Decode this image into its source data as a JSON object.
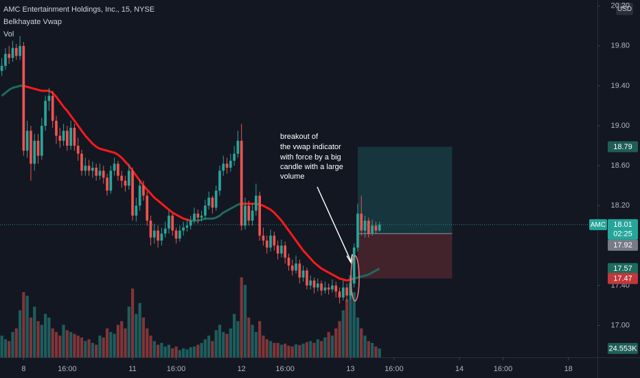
{
  "chart_data": {
    "type": "candlestick",
    "title": "AMC Entertainment Holdings, Inc., 15, NYSE",
    "indicators": [
      "Belkhayate Vwap",
      "Vol"
    ],
    "currency": "USD",
    "symbol": "AMC",
    "countdown": "02:25",
    "up_color": "#26a69a",
    "down_color": "#ef5350",
    "vwap_up_color": "#1d6b5f",
    "vwap_down_color": "#ff1a1a",
    "grid": false,
    "xlim": [
      -0.5,
      164
    ],
    "xticks": [
      {
        "value": 6,
        "label": "8"
      },
      {
        "value": 18,
        "label": "16:00"
      },
      {
        "value": 36,
        "label": "11"
      },
      {
        "value": 48,
        "label": "16:00"
      },
      {
        "value": 66,
        "label": "12"
      },
      {
        "value": 78,
        "label": "16:00"
      },
      {
        "value": 96,
        "label": "13"
      },
      {
        "value": 108,
        "label": "16:00"
      },
      {
        "value": 126,
        "label": "14"
      },
      {
        "value": 138,
        "label": "16:00"
      },
      {
        "value": 156,
        "label": "18"
      }
    ],
    "ylim": [
      16.68,
      20.26
    ],
    "yticks": [
      {
        "value": 17.0,
        "label": "17.00"
      },
      {
        "value": 17.4,
        "label": "17.40"
      },
      {
        "value": 18.2,
        "label": "18.20"
      },
      {
        "value": 18.6,
        "label": "18.60"
      },
      {
        "value": 19.0,
        "label": "19.00"
      },
      {
        "value": 19.4,
        "label": "19.40"
      },
      {
        "value": 19.8,
        "label": "19.80"
      },
      {
        "value": 20.2,
        "label": "20.20"
      }
    ],
    "ohlc": [
      [
        19.55,
        19.68,
        19.5,
        19.6
      ],
      [
        19.6,
        19.78,
        19.56,
        19.72
      ],
      [
        19.72,
        19.8,
        19.62,
        19.68
      ],
      [
        19.68,
        19.85,
        19.64,
        19.78
      ],
      [
        19.78,
        19.82,
        19.66,
        19.7
      ],
      [
        19.7,
        19.9,
        19.66,
        19.8
      ],
      [
        19.8,
        19.84,
        18.7,
        18.75
      ],
      [
        18.75,
        19.05,
        18.68,
        18.95
      ],
      [
        18.95,
        19.0,
        18.45,
        18.62
      ],
      [
        18.62,
        18.92,
        18.55,
        18.85
      ],
      [
        18.85,
        18.92,
        18.62,
        18.7
      ],
      [
        18.7,
        19.08,
        18.66,
        19.0
      ],
      [
        19.0,
        19.3,
        18.95,
        19.25
      ],
      [
        19.25,
        19.38,
        19.15,
        19.3
      ],
      [
        19.3,
        19.35,
        18.98,
        19.05
      ],
      [
        19.05,
        19.1,
        18.82,
        18.9
      ],
      [
        18.9,
        18.98,
        18.78,
        18.85
      ],
      [
        18.85,
        19.02,
        18.8,
        18.95
      ],
      [
        18.95,
        19.0,
        18.75,
        18.8
      ],
      [
        18.8,
        19.05,
        18.76,
        18.98
      ],
      [
        18.98,
        19.02,
        18.75,
        18.8
      ],
      [
        18.8,
        18.88,
        18.65,
        18.72
      ],
      [
        18.72,
        18.76,
        18.5,
        18.55
      ],
      [
        18.55,
        18.68,
        18.5,
        18.6
      ],
      [
        18.6,
        18.66,
        18.5,
        18.55
      ],
      [
        18.55,
        18.64,
        18.48,
        18.58
      ],
      [
        18.58,
        18.62,
        18.45,
        18.5
      ],
      [
        18.5,
        18.62,
        18.46,
        18.55
      ],
      [
        18.55,
        18.6,
        18.42,
        18.48
      ],
      [
        18.48,
        18.52,
        18.3,
        18.35
      ],
      [
        18.35,
        18.6,
        18.32,
        18.55
      ],
      [
        18.55,
        18.68,
        18.5,
        18.62
      ],
      [
        18.62,
        18.65,
        18.45,
        18.5
      ],
      [
        18.5,
        18.55,
        18.38,
        18.45
      ],
      [
        18.45,
        18.5,
        18.34,
        18.4
      ],
      [
        18.4,
        18.62,
        18.36,
        18.55
      ],
      [
        18.55,
        18.58,
        18.05,
        18.1
      ],
      [
        18.1,
        18.28,
        18.04,
        18.2
      ],
      [
        18.2,
        18.46,
        18.15,
        18.4
      ],
      [
        18.4,
        18.45,
        18.25,
        18.3
      ],
      [
        18.3,
        18.34,
        18.0,
        18.05
      ],
      [
        18.05,
        18.1,
        17.8,
        17.88
      ],
      [
        17.88,
        18.02,
        17.82,
        17.95
      ],
      [
        17.95,
        18.0,
        17.78,
        17.85
      ],
      [
        17.85,
        17.98,
        17.8,
        17.92
      ],
      [
        17.92,
        18.04,
        17.88,
        17.97
      ],
      [
        17.97,
        18.15,
        17.92,
        18.1
      ],
      [
        18.1,
        18.12,
        17.9,
        17.95
      ],
      [
        17.95,
        17.98,
        17.82,
        17.87
      ],
      [
        17.87,
        18.0,
        17.84,
        17.95
      ],
      [
        17.95,
        18.04,
        17.9,
        17.98
      ],
      [
        17.98,
        18.06,
        17.94,
        18.0
      ],
      [
        18.0,
        18.1,
        17.96,
        18.05
      ],
      [
        18.05,
        18.18,
        18.02,
        18.12
      ],
      [
        18.12,
        18.16,
        18.02,
        18.08
      ],
      [
        18.08,
        18.15,
        18.04,
        18.1
      ],
      [
        18.1,
        18.26,
        18.06,
        18.2
      ],
      [
        18.2,
        18.34,
        18.16,
        18.28
      ],
      [
        18.28,
        18.3,
        18.12,
        18.18
      ],
      [
        18.18,
        18.4,
        18.15,
        18.35
      ],
      [
        18.35,
        18.6,
        18.3,
        18.55
      ],
      [
        18.55,
        18.7,
        18.5,
        18.62
      ],
      [
        18.62,
        18.68,
        18.52,
        18.58
      ],
      [
        18.58,
        18.72,
        18.54,
        18.65
      ],
      [
        18.65,
        18.8,
        18.6,
        18.72
      ],
      [
        18.72,
        18.95,
        18.68,
        18.85
      ],
      [
        18.85,
        19.02,
        17.95,
        18.0
      ],
      [
        18.0,
        18.28,
        17.96,
        18.2
      ],
      [
        18.2,
        18.25,
        18.0,
        18.05
      ],
      [
        18.05,
        18.22,
        18.0,
        18.15
      ],
      [
        18.15,
        18.42,
        18.1,
        18.3
      ],
      [
        18.3,
        18.34,
        17.85,
        17.9
      ],
      [
        17.9,
        17.98,
        17.8,
        17.85
      ],
      [
        17.85,
        17.9,
        17.72,
        17.78
      ],
      [
        17.78,
        17.96,
        17.74,
        17.9
      ],
      [
        17.9,
        17.94,
        17.75,
        17.8
      ],
      [
        17.8,
        17.85,
        17.66,
        17.72
      ],
      [
        17.72,
        17.86,
        17.68,
        17.8
      ],
      [
        17.8,
        17.84,
        17.62,
        17.68
      ],
      [
        17.68,
        17.72,
        17.55,
        17.6
      ],
      [
        17.6,
        17.66,
        17.5,
        17.55
      ],
      [
        17.55,
        17.7,
        17.52,
        17.62
      ],
      [
        17.62,
        17.66,
        17.42,
        17.48
      ],
      [
        17.48,
        17.6,
        17.44,
        17.55
      ],
      [
        17.55,
        17.58,
        17.36,
        17.4
      ],
      [
        17.4,
        17.5,
        17.36,
        17.45
      ],
      [
        17.45,
        17.48,
        17.32,
        17.38
      ],
      [
        17.38,
        17.47,
        17.34,
        17.42
      ],
      [
        17.42,
        17.45,
        17.3,
        17.35
      ],
      [
        17.35,
        17.44,
        17.32,
        17.38
      ],
      [
        17.38,
        17.42,
        17.31,
        17.36
      ],
      [
        17.36,
        17.46,
        17.33,
        17.4
      ],
      [
        17.4,
        17.44,
        17.28,
        17.34
      ],
      [
        17.34,
        17.38,
        17.22,
        17.28
      ],
      [
        17.28,
        17.45,
        17.25,
        17.38
      ],
      [
        17.38,
        17.42,
        17.24,
        17.3
      ],
      [
        17.3,
        17.48,
        17.26,
        17.42
      ],
      [
        17.42,
        17.82,
        17.38,
        17.78
      ],
      [
        17.78,
        18.22,
        17.74,
        18.12
      ],
      [
        18.12,
        18.3,
        17.9,
        17.95
      ],
      [
        17.95,
        18.1,
        17.88,
        18.05
      ],
      [
        18.05,
        18.08,
        17.88,
        17.92
      ],
      [
        17.92,
        18.06,
        17.9,
        18.0
      ],
      [
        18.0,
        18.04,
        17.92,
        17.95
      ],
      [
        17.95,
        18.04,
        17.94,
        18.01
      ]
    ],
    "volume_lim": [
      0,
      550000
    ],
    "volume": [
      60000,
      50000,
      45000,
      70000,
      80000,
      130000,
      180000,
      170000,
      110000,
      140000,
      100000,
      90000,
      120000,
      110000,
      80000,
      70000,
      60000,
      90000,
      75000,
      70000,
      65000,
      60000,
      55000,
      45000,
      50000,
      40000,
      35000,
      60000,
      55000,
      80000,
      70000,
      65000,
      90000,
      100000,
      80000,
      140000,
      190000,
      120000,
      150000,
      110000,
      80000,
      60000,
      45000,
      35000,
      40000,
      30000,
      35000,
      25000,
      30000,
      20000,
      25000,
      22000,
      28000,
      30000,
      35000,
      40000,
      50000,
      60000,
      45000,
      75000,
      90000,
      70000,
      65000,
      80000,
      120000,
      100000,
      221000,
      200000,
      110000,
      90000,
      70000,
      100000,
      60000,
      50000,
      45000,
      40000,
      40000,
      35000,
      38000,
      32000,
      30000,
      36000,
      34000,
      38000,
      42000,
      45000,
      40000,
      50000,
      45000,
      55000,
      70000,
      60000,
      80000,
      100000,
      130000,
      160000,
      227000,
      180000,
      110000,
      80000,
      60000,
      45000,
      40000,
      30000,
      24553
    ],
    "volume_last_label": "24.553K",
    "vwap": [
      19.3,
      19.33,
      19.36,
      19.38,
      19.39,
      19.4,
      19.4,
      19.39,
      19.38,
      19.37,
      19.36,
      19.35,
      19.35,
      19.35,
      19.33,
      19.29,
      19.24,
      19.19,
      19.15,
      19.1,
      19.05,
      19.0,
      18.95,
      18.9,
      18.86,
      18.82,
      18.79,
      18.77,
      18.76,
      18.75,
      18.74,
      18.73,
      18.71,
      18.68,
      18.64,
      18.6,
      18.55,
      18.5,
      18.45,
      18.4,
      18.36,
      18.32,
      18.28,
      18.25,
      18.22,
      18.19,
      18.16,
      18.13,
      18.11,
      18.09,
      18.07,
      18.06,
      18.05,
      18.05,
      18.05,
      18.06,
      18.07,
      18.07,
      18.07,
      18.08,
      18.1,
      18.13,
      18.15,
      18.17,
      18.19,
      18.21,
      18.22,
      18.22,
      18.22,
      18.22,
      18.22,
      18.21,
      18.2,
      18.18,
      18.16,
      18.13,
      18.09,
      18.05,
      18.0,
      17.95,
      17.9,
      17.85,
      17.8,
      17.75,
      17.71,
      17.67,
      17.63,
      17.6,
      17.57,
      17.55,
      17.53,
      17.51,
      17.49,
      17.47,
      17.46,
      17.45,
      17.46,
      17.47,
      17.48,
      17.49,
      17.5,
      17.51,
      17.53,
      17.55,
      17.57
    ],
    "position": {
      "start": 98,
      "end": 124,
      "entry": 17.92,
      "target": 18.79,
      "stop": 17.47
    },
    "annotation": [
      "breakout of",
      "the vwap indicator",
      "with force by a big",
      "candle with a large",
      "volume"
    ]
  }
}
